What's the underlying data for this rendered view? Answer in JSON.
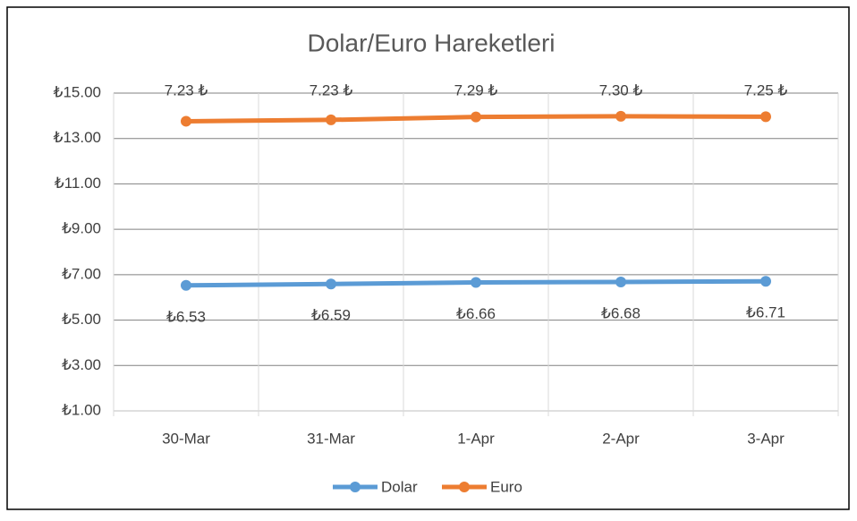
{
  "chart_data": {
    "type": "line",
    "title": "Dolar/Euro Hareketleri",
    "stacked": true,
    "grid": true,
    "legend": "bottom",
    "categories": [
      "30-Mar",
      "31-Mar",
      "1-Apr",
      "2-Apr",
      "3-Apr"
    ],
    "series": [
      {
        "name": "Dolar",
        "color": "#5b9bd5",
        "values": [
          6.53,
          6.59,
          6.66,
          6.68,
          6.71
        ],
        "value_labels": [
          "₺6.53",
          "₺6.59",
          "₺6.66",
          "₺6.68",
          "₺6.71"
        ]
      },
      {
        "name": "Euro",
        "color": "#ed7d31",
        "values": [
          7.23,
          7.23,
          7.29,
          7.3,
          7.25
        ],
        "value_labels": [
          "7.23 ₺",
          "7.23 ₺",
          "7.29 ₺",
          "7.30 ₺",
          "7.25 ₺"
        ]
      }
    ],
    "ylim": [
      1,
      15
    ],
    "yticks": [
      {
        "value": 1,
        "label": "₺1.00"
      },
      {
        "value": 3,
        "label": "₺3.00"
      },
      {
        "value": 5,
        "label": "₺5.00"
      },
      {
        "value": 7,
        "label": "₺7.00"
      },
      {
        "value": 9,
        "label": "₺9.00"
      },
      {
        "value": 11,
        "label": "₺11.00"
      },
      {
        "value": 13,
        "label": "₺13.00"
      },
      {
        "value": 15,
        "label": "₺15.00"
      }
    ]
  }
}
